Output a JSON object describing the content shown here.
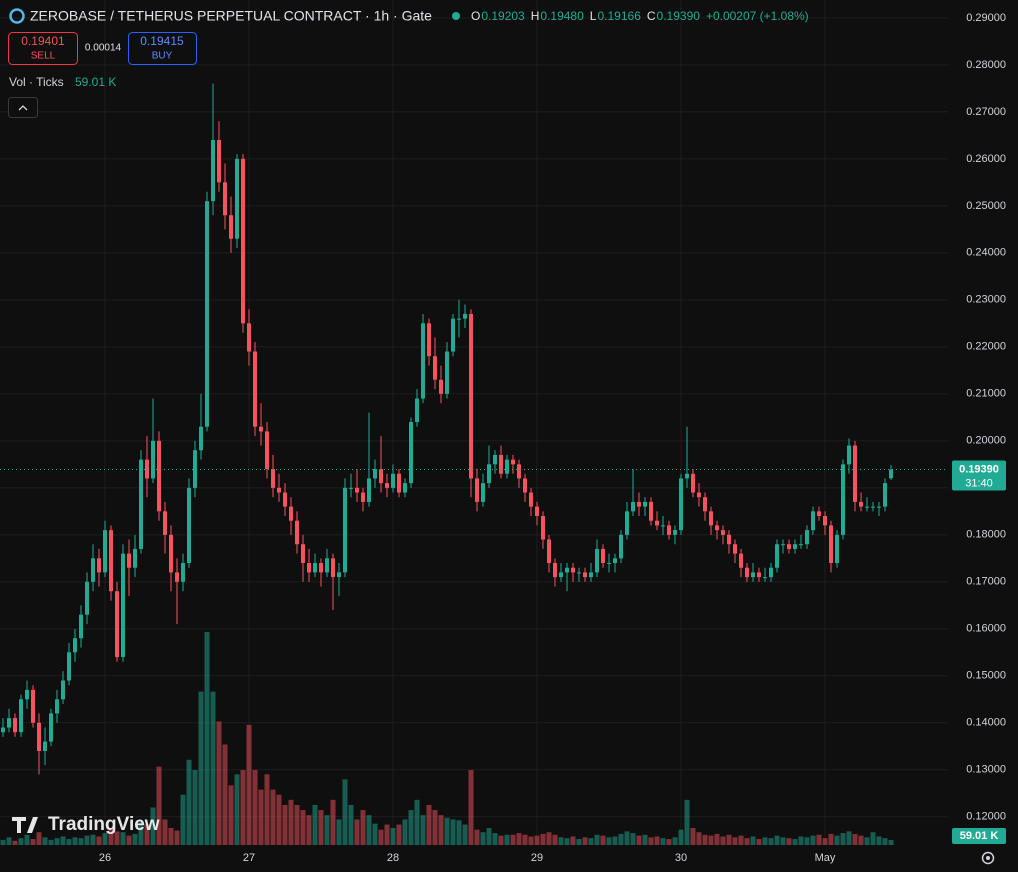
{
  "chart_data": {
    "type": "candlestick",
    "title": "ZEROBASE / TETHERUS PERPETUAL CONTRACT · 1h · Gate",
    "ohlc_legend": [
      {
        "label": "O",
        "value": "0.19203"
      },
      {
        "label": "H",
        "value": "0.19480"
      },
      {
        "label": "L",
        "value": "0.19166"
      },
      {
        "label": "C",
        "value": "0.19390"
      }
    ],
    "change": "+0.00207 (+1.08%)",
    "quote": {
      "sell_price": "0.19401",
      "sell": "SELL",
      "spread": "0.00014",
      "buy_price": "0.19415",
      "buy": "BUY"
    },
    "last_price_label": "0.19390",
    "countdown": "31:40",
    "brand": "TradingView",
    "up_color": "#22ab94",
    "down_color": "#f7525f",
    "grid": true,
    "ylim": [
      0.114,
      0.2938
    ],
    "yticks": [
      {
        "value": 0.12,
        "label": "0.12000"
      },
      {
        "value": 0.13,
        "label": "0.13000"
      },
      {
        "value": 0.14,
        "label": "0.14000"
      },
      {
        "value": 0.15,
        "label": "0.15000"
      },
      {
        "value": 0.16,
        "label": "0.16000"
      },
      {
        "value": 0.17,
        "label": "0.17000"
      },
      {
        "value": 0.18,
        "label": "0.18000"
      },
      {
        "value": 0.19,
        "label": "0.19000"
      },
      {
        "value": 0.2,
        "label": "0.20000"
      },
      {
        "value": 0.21,
        "label": "0.21000"
      },
      {
        "value": 0.22,
        "label": "0.22000"
      },
      {
        "value": 0.23,
        "label": "0.23000"
      },
      {
        "value": 0.24,
        "label": "0.24000"
      },
      {
        "value": 0.25,
        "label": "0.25000"
      },
      {
        "value": 0.26,
        "label": "0.26000"
      },
      {
        "value": 0.27,
        "label": "0.27000"
      },
      {
        "value": 0.28,
        "label": "0.28000"
      },
      {
        "value": 0.29,
        "label": "0.29000"
      }
    ],
    "categories": [
      null,
      null,
      null,
      null,
      null,
      null,
      null,
      null,
      null,
      null,
      null,
      null,
      null,
      null,
      null,
      null,
      null,
      "26",
      null,
      null,
      null,
      null,
      null,
      null,
      null,
      null,
      null,
      null,
      null,
      null,
      null,
      null,
      null,
      null,
      null,
      null,
      null,
      null,
      null,
      null,
      null,
      "27",
      null,
      null,
      null,
      null,
      null,
      null,
      null,
      null,
      null,
      null,
      null,
      null,
      null,
      null,
      null,
      null,
      null,
      null,
      null,
      null,
      null,
      null,
      null,
      "28",
      null,
      null,
      null,
      null,
      null,
      null,
      null,
      null,
      null,
      null,
      null,
      null,
      null,
      null,
      null,
      null,
      null,
      null,
      null,
      null,
      null,
      null,
      null,
      "29",
      null,
      null,
      null,
      null,
      null,
      null,
      null,
      null,
      null,
      null,
      null,
      null,
      null,
      null,
      null,
      null,
      null,
      null,
      null,
      null,
      null,
      null,
      null,
      "30",
      null,
      null,
      null,
      null,
      null,
      null,
      null,
      null,
      null,
      null,
      null,
      null,
      null,
      null,
      null,
      null,
      null,
      null,
      null,
      null,
      null,
      null,
      null,
      "May",
      null,
      null,
      null,
      null,
      null,
      null,
      null,
      null,
      null,
      null,
      null
    ],
    "ohlc": [
      [
        0.138,
        0.141,
        0.137,
        0.139
      ],
      [
        0.139,
        0.143,
        0.138,
        0.141
      ],
      [
        0.141,
        0.142,
        0.137,
        0.138
      ],
      [
        0.138,
        0.146,
        0.137,
        0.145
      ],
      [
        0.145,
        0.149,
        0.143,
        0.147
      ],
      [
        0.147,
        0.148,
        0.139,
        0.14
      ],
      [
        0.14,
        0.142,
        0.129,
        0.134
      ],
      [
        0.134,
        0.139,
        0.131,
        0.136
      ],
      [
        0.136,
        0.143,
        0.135,
        0.142
      ],
      [
        0.142,
        0.147,
        0.14,
        0.145
      ],
      [
        0.145,
        0.151,
        0.144,
        0.149
      ],
      [
        0.149,
        0.157,
        0.148,
        0.155
      ],
      [
        0.155,
        0.16,
        0.153,
        0.158
      ],
      [
        0.158,
        0.165,
        0.156,
        0.163
      ],
      [
        0.163,
        0.172,
        0.161,
        0.17
      ],
      [
        0.17,
        0.178,
        0.168,
        0.175
      ],
      [
        0.175,
        0.177,
        0.169,
        0.172
      ],
      [
        0.172,
        0.183,
        0.171,
        0.181
      ],
      [
        0.181,
        0.182,
        0.166,
        0.168
      ],
      [
        0.168,
        0.17,
        0.153,
        0.154
      ],
      [
        0.154,
        0.178,
        0.153,
        0.176
      ],
      [
        0.176,
        0.179,
        0.167,
        0.173
      ],
      [
        0.173,
        0.18,
        0.171,
        0.177
      ],
      [
        0.177,
        0.198,
        0.176,
        0.196
      ],
      [
        0.196,
        0.201,
        0.188,
        0.192
      ],
      [
        0.192,
        0.209,
        0.191,
        0.2
      ],
      [
        0.2,
        0.202,
        0.183,
        0.185
      ],
      [
        0.185,
        0.187,
        0.176,
        0.18
      ],
      [
        0.18,
        0.182,
        0.168,
        0.172
      ],
      [
        0.172,
        0.175,
        0.161,
        0.17
      ],
      [
        0.17,
        0.176,
        0.168,
        0.174
      ],
      [
        0.174,
        0.192,
        0.173,
        0.19
      ],
      [
        0.19,
        0.2,
        0.188,
        0.198
      ],
      [
        0.198,
        0.21,
        0.196,
        0.203
      ],
      [
        0.203,
        0.253,
        0.202,
        0.251
      ],
      [
        0.251,
        0.276,
        0.248,
        0.264
      ],
      [
        0.264,
        0.268,
        0.253,
        0.255
      ],
      [
        0.255,
        0.259,
        0.245,
        0.248
      ],
      [
        0.248,
        0.252,
        0.24,
        0.243
      ],
      [
        0.243,
        0.261,
        0.241,
        0.26
      ],
      [
        0.26,
        0.261,
        0.223,
        0.225
      ],
      [
        0.225,
        0.228,
        0.216,
        0.219
      ],
      [
        0.219,
        0.221,
        0.201,
        0.203
      ],
      [
        0.203,
        0.208,
        0.199,
        0.202
      ],
      [
        0.202,
        0.204,
        0.192,
        0.194
      ],
      [
        0.194,
        0.197,
        0.188,
        0.19
      ],
      [
        0.19,
        0.193,
        0.187,
        0.189
      ],
      [
        0.189,
        0.191,
        0.184,
        0.186
      ],
      [
        0.186,
        0.188,
        0.18,
        0.183
      ],
      [
        0.183,
        0.185,
        0.176,
        0.178
      ],
      [
        0.178,
        0.18,
        0.17,
        0.174
      ],
      [
        0.174,
        0.177,
        0.17,
        0.172
      ],
      [
        0.172,
        0.176,
        0.171,
        0.174
      ],
      [
        0.174,
        0.175,
        0.169,
        0.172
      ],
      [
        0.172,
        0.177,
        0.171,
        0.175
      ],
      [
        0.175,
        0.176,
        0.164,
        0.171
      ],
      [
        0.171,
        0.174,
        0.167,
        0.172
      ],
      [
        0.172,
        0.192,
        0.171,
        0.19
      ],
      [
        0.19,
        0.193,
        0.188,
        0.19
      ],
      [
        0.19,
        0.194,
        0.187,
        0.189
      ],
      [
        0.189,
        0.19,
        0.185,
        0.187
      ],
      [
        0.187,
        0.206,
        0.186,
        0.192
      ],
      [
        0.192,
        0.196,
        0.19,
        0.194
      ],
      [
        0.194,
        0.201,
        0.189,
        0.191
      ],
      [
        0.191,
        0.193,
        0.188,
        0.19
      ],
      [
        0.19,
        0.195,
        0.189,
        0.193
      ],
      [
        0.193,
        0.194,
        0.188,
        0.189
      ],
      [
        0.189,
        0.192,
        0.188,
        0.191
      ],
      [
        0.191,
        0.205,
        0.19,
        0.204
      ],
      [
        0.204,
        0.211,
        0.203,
        0.209
      ],
      [
        0.209,
        0.227,
        0.208,
        0.225
      ],
      [
        0.225,
        0.226,
        0.216,
        0.218
      ],
      [
        0.218,
        0.222,
        0.211,
        0.213
      ],
      [
        0.213,
        0.216,
        0.208,
        0.21
      ],
      [
        0.21,
        0.221,
        0.209,
        0.219
      ],
      [
        0.219,
        0.227,
        0.218,
        0.226
      ],
      [
        0.226,
        0.23,
        0.222,
        0.226
      ],
      [
        0.226,
        0.229,
        0.224,
        0.227
      ],
      [
        0.227,
        0.228,
        0.188,
        0.192
      ],
      [
        0.192,
        0.194,
        0.185,
        0.187
      ],
      [
        0.187,
        0.193,
        0.186,
        0.191
      ],
      [
        0.191,
        0.199,
        0.19,
        0.195
      ],
      [
        0.195,
        0.198,
        0.193,
        0.197
      ],
      [
        0.197,
        0.199,
        0.192,
        0.193
      ],
      [
        0.193,
        0.197,
        0.192,
        0.196
      ],
      [
        0.196,
        0.197,
        0.193,
        0.195
      ],
      [
        0.195,
        0.196,
        0.19,
        0.192
      ],
      [
        0.192,
        0.193,
        0.187,
        0.189
      ],
      [
        0.189,
        0.19,
        0.184,
        0.186
      ],
      [
        0.186,
        0.187,
        0.182,
        0.184
      ],
      [
        0.184,
        0.185,
        0.177,
        0.179
      ],
      [
        0.179,
        0.18,
        0.172,
        0.174
      ],
      [
        0.174,
        0.175,
        0.169,
        0.171
      ],
      [
        0.171,
        0.174,
        0.17,
        0.172
      ],
      [
        0.172,
        0.174,
        0.168,
        0.173
      ],
      [
        0.173,
        0.174,
        0.17,
        0.172
      ],
      [
        0.172,
        0.173,
        0.17,
        0.172
      ],
      [
        0.172,
        0.173,
        0.17,
        0.171
      ],
      [
        0.171,
        0.174,
        0.17,
        0.172
      ],
      [
        0.172,
        0.179,
        0.171,
        0.177
      ],
      [
        0.177,
        0.178,
        0.173,
        0.174
      ],
      [
        0.174,
        0.176,
        0.172,
        0.174
      ],
      [
        0.174,
        0.176,
        0.172,
        0.175
      ],
      [
        0.175,
        0.181,
        0.174,
        0.18
      ],
      [
        0.18,
        0.187,
        0.179,
        0.185
      ],
      [
        0.185,
        0.194,
        0.184,
        0.187
      ],
      [
        0.187,
        0.189,
        0.184,
        0.186
      ],
      [
        0.186,
        0.188,
        0.184,
        0.187
      ],
      [
        0.187,
        0.188,
        0.182,
        0.183
      ],
      [
        0.183,
        0.185,
        0.181,
        0.182
      ],
      [
        0.182,
        0.184,
        0.18,
        0.182
      ],
      [
        0.182,
        0.183,
        0.179,
        0.18
      ],
      [
        0.18,
        0.182,
        0.178,
        0.181
      ],
      [
        0.181,
        0.193,
        0.18,
        0.192
      ],
      [
        0.192,
        0.203,
        0.19,
        0.193
      ],
      [
        0.193,
        0.194,
        0.188,
        0.189
      ],
      [
        0.189,
        0.191,
        0.186,
        0.188
      ],
      [
        0.188,
        0.189,
        0.183,
        0.185
      ],
      [
        0.185,
        0.186,
        0.18,
        0.182
      ],
      [
        0.182,
        0.183,
        0.179,
        0.181
      ],
      [
        0.181,
        0.182,
        0.178,
        0.18
      ],
      [
        0.18,
        0.181,
        0.176,
        0.178
      ],
      [
        0.178,
        0.179,
        0.174,
        0.176
      ],
      [
        0.176,
        0.177,
        0.171,
        0.173
      ],
      [
        0.173,
        0.174,
        0.17,
        0.171
      ],
      [
        0.171,
        0.174,
        0.17,
        0.172
      ],
      [
        0.172,
        0.173,
        0.17,
        0.171
      ],
      [
        0.171,
        0.173,
        0.17,
        0.171
      ],
      [
        0.171,
        0.174,
        0.17,
        0.173
      ],
      [
        0.173,
        0.179,
        0.172,
        0.178
      ],
      [
        0.178,
        0.179,
        0.176,
        0.178
      ],
      [
        0.178,
        0.179,
        0.176,
        0.177
      ],
      [
        0.177,
        0.179,
        0.176,
        0.178
      ],
      [
        0.178,
        0.18,
        0.177,
        0.178
      ],
      [
        0.178,
        0.182,
        0.177,
        0.181
      ],
      [
        0.181,
        0.186,
        0.18,
        0.185
      ],
      [
        0.185,
        0.186,
        0.183,
        0.184
      ],
      [
        0.184,
        0.185,
        0.18,
        0.182
      ],
      [
        0.182,
        0.183,
        0.172,
        0.174
      ],
      [
        0.174,
        0.181,
        0.173,
        0.18
      ],
      [
        0.18,
        0.196,
        0.179,
        0.195
      ],
      [
        0.195,
        0.2005,
        0.193,
        0.199
      ],
      [
        0.199,
        0.2,
        0.185,
        0.187
      ],
      [
        0.187,
        0.189,
        0.185,
        0.186
      ],
      [
        0.186,
        0.188,
        0.185,
        0.186
      ],
      [
        0.186,
        0.187,
        0.185,
        0.186
      ],
      [
        0.186,
        0.187,
        0.184,
        0.186
      ],
      [
        0.186,
        0.192,
        0.185,
        0.191
      ],
      [
        0.19203,
        0.1948,
        0.19166,
        0.1939
      ]
    ],
    "volume": {
      "title": "Vol · Ticks",
      "last_label": "59.01 K",
      "values": [
        60000,
        90000,
        50000,
        80000,
        120000,
        70000,
        150000,
        90000,
        60000,
        80000,
        100000,
        70000,
        90000,
        80000,
        110000,
        120000,
        100000,
        140000,
        200000,
        160000,
        150000,
        110000,
        130000,
        280000,
        240000,
        440000,
        920000,
        300000,
        200000,
        170000,
        590000,
        1000000,
        880000,
        1800000,
        2500000,
        1800000,
        1450000,
        1180000,
        700000,
        830000,
        880000,
        1410000,
        880000,
        650000,
        830000,
        650000,
        590000,
        470000,
        530000,
        470000,
        410000,
        350000,
        470000,
        410000,
        350000,
        530000,
        300000,
        770000,
        470000,
        300000,
        410000,
        350000,
        250000,
        180000,
        240000,
        200000,
        240000,
        300000,
        410000,
        530000,
        350000,
        470000,
        410000,
        350000,
        320000,
        300000,
        290000,
        240000,
        880000,
        180000,
        150000,
        200000,
        140000,
        110000,
        120000,
        120000,
        140000,
        120000,
        100000,
        110000,
        130000,
        150000,
        120000,
        90000,
        80000,
        100000,
        70000,
        90000,
        80000,
        120000,
        110000,
        90000,
        100000,
        130000,
        160000,
        140000,
        110000,
        120000,
        90000,
        100000,
        80000,
        70000,
        90000,
        180000,
        530000,
        200000,
        150000,
        120000,
        110000,
        130000,
        100000,
        120000,
        90000,
        110000,
        80000,
        100000,
        70000,
        90000,
        80000,
        110000,
        90000,
        80000,
        70000,
        100000,
        90000,
        110000,
        120000,
        80000,
        130000,
        110000,
        140000,
        160000,
        130000,
        110000,
        90000,
        150000,
        100000,
        80000,
        59010
      ]
    }
  }
}
